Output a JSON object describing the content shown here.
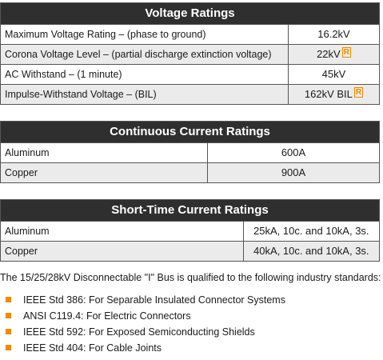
{
  "voltage": {
    "title": "Voltage Ratings",
    "rows": [
      {
        "label": "Maximum Voltage Rating – (phase to ground)",
        "value": "16.2kV",
        "mark": ""
      },
      {
        "label": "Corona Voltage Level – (partial discharge extinction voltage)",
        "value": "22kV",
        "mark": "R"
      },
      {
        "label": "AC Withstand – (1 minute)",
        "value": "45kV",
        "mark": ""
      },
      {
        "label": "Impulse-Withstand Voltage – (BIL)",
        "value": "162kV BIL",
        "mark": "R"
      }
    ]
  },
  "continuous": {
    "title": "Continuous Current Ratings",
    "rows": [
      {
        "label": "Aluminum",
        "value": "600A"
      },
      {
        "label": "Copper",
        "value": "900A"
      }
    ]
  },
  "short_time": {
    "title": "Short-Time Current Ratings",
    "rows": [
      {
        "label": "Aluminum",
        "value": "25kA, 10c. and 10kA, 3s."
      },
      {
        "label": "Copper",
        "value": "40kA, 10c. and 10kA, 3s."
      }
    ]
  },
  "standards": {
    "intro": "The 15/25/28kV Disconnectable \"I\" Bus is qualified to the following industry standards:",
    "items": [
      "IEEE Std 386: For Separable Insulated Connector Systems",
      "ANSI C119.4: For Electric Connectors",
      "IEEE Std 592: For Exposed Semiconducting Shields",
      "IEEE Std 404: For Cable Joints"
    ],
    "bullet_color": "#f08a00"
  }
}
